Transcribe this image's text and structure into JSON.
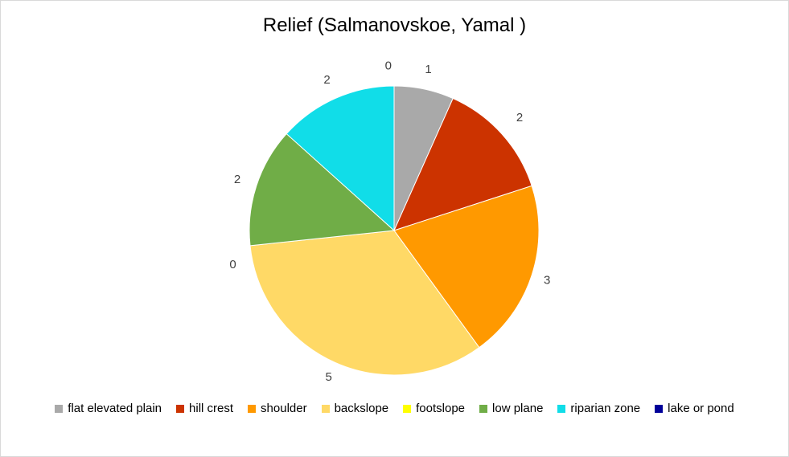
{
  "chart_data": {
    "type": "pie",
    "title": "Relief (Salmanovskoe, Yamal )",
    "categories": [
      "flat elevated plain",
      "hill crest",
      "shoulder",
      "backslope",
      "footslope",
      "low plane",
      "riparian zone",
      "lake or pond"
    ],
    "values": [
      1,
      2,
      3,
      5,
      0,
      2,
      2,
      0
    ],
    "colors": [
      "#a9a9a9",
      "#cc3300",
      "#ff9900",
      "#ffd966",
      "#ffff00",
      "#70ad47",
      "#11dde8",
      "#000099"
    ],
    "legend_position": "bottom",
    "data_labels": true
  }
}
